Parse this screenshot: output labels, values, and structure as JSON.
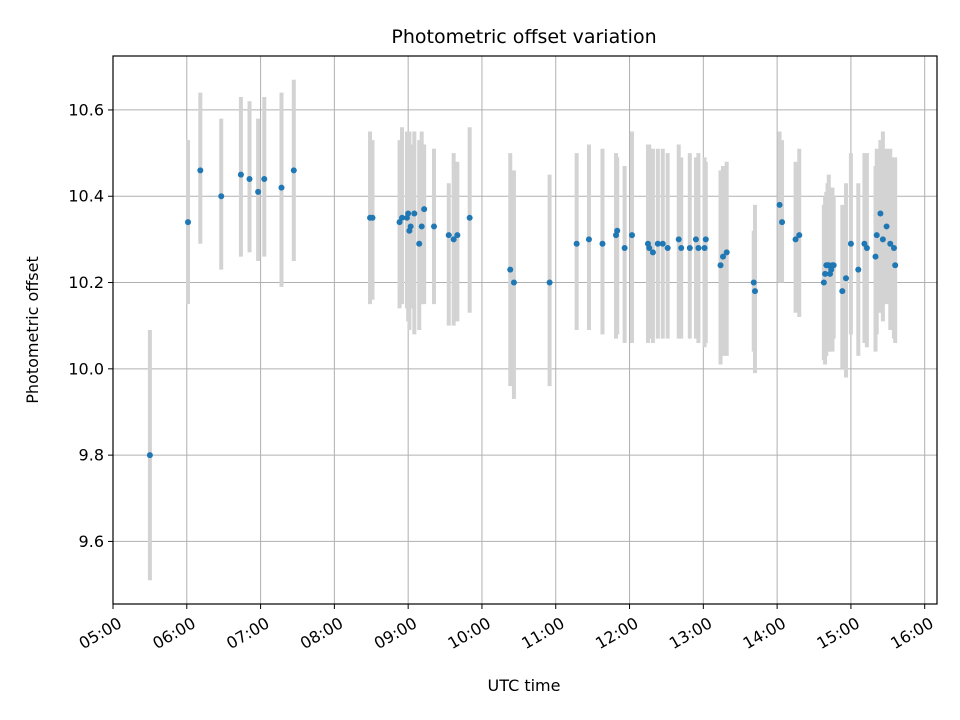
{
  "chart_data": {
    "type": "scatter",
    "title": "Photometric offset variation",
    "xlabel": "UTC time",
    "ylabel": "Photometric offset",
    "x_ticks": [
      "05:00",
      "06:00",
      "07:00",
      "08:00",
      "09:00",
      "10:00",
      "11:00",
      "12:00",
      "13:00",
      "14:00",
      "15:00",
      "16:00"
    ],
    "y_ticks": [
      "9.6",
      "9.8",
      "10.0",
      "10.2",
      "10.4",
      "10.6"
    ],
    "xlim": [
      "05:00",
      "16:10"
    ],
    "ylim": [
      9.455,
      10.725
    ],
    "grid": true,
    "colors": {
      "points": "#1f77b4",
      "errorbars": "#d3d3d3",
      "grid": "#b0b0b0"
    },
    "series": [
      {
        "x": [
          "05:30",
          "06:01",
          "06:11",
          "06:28",
          "06:44",
          "06:51",
          "06:58",
          "07:03",
          "07:17",
          "07:27",
          "08:29",
          "08:31",
          "08:53",
          "08:55",
          "08:59",
          "09:00",
          "09:01",
          "09:02",
          "09:05",
          "09:09",
          "09:11",
          "09:13",
          "09:21",
          "09:33",
          "09:37",
          "09:40",
          "09:50",
          "10:23",
          "10:26",
          "10:55",
          "11:17",
          "11:27",
          "11:38",
          "11:49",
          "11:50",
          "11:56",
          "12:02",
          "12:15",
          "12:16",
          "12:19",
          "12:23",
          "12:27",
          "12:31",
          "12:40",
          "12:42",
          "12:49",
          "12:54",
          "12:56",
          "13:01",
          "13:02",
          "13:14",
          "13:16",
          "13:19",
          "13:41",
          "13:42",
          "14:02",
          "14:04",
          "14:15",
          "14:18",
          "14:38",
          "14:39",
          "14:40",
          "14:41",
          "14:42",
          "14:43",
          "14:44",
          "14:45",
          "14:46",
          "14:53",
          "14:56",
          "15:00",
          "15:06",
          "15:11",
          "15:13",
          "15:20",
          "15:21",
          "15:24",
          "15:26",
          "15:29",
          "15:32",
          "15:35",
          "15:36"
        ],
        "y": [
          9.8,
          10.34,
          10.46,
          10.4,
          10.45,
          10.44,
          10.41,
          10.44,
          10.42,
          10.46,
          10.35,
          10.35,
          10.34,
          10.35,
          10.35,
          10.36,
          10.32,
          10.33,
          10.36,
          10.29,
          10.33,
          10.37,
          10.33,
          10.31,
          10.3,
          10.31,
          10.35,
          10.23,
          10.2,
          10.2,
          10.29,
          10.3,
          10.29,
          10.31,
          10.32,
          10.28,
          10.31,
          10.29,
          10.28,
          10.27,
          10.29,
          10.29,
          10.28,
          10.3,
          10.28,
          10.28,
          10.3,
          10.28,
          10.28,
          10.3,
          10.24,
          10.26,
          10.27,
          10.2,
          10.18,
          10.38,
          10.34,
          10.3,
          10.31,
          10.2,
          10.22,
          10.24,
          10.24,
          10.24,
          10.22,
          10.23,
          10.24,
          10.24,
          10.18,
          10.21,
          10.29,
          10.23,
          10.29,
          10.28,
          10.26,
          10.31,
          10.36,
          10.3,
          10.33,
          10.29,
          10.28,
          10.24
        ],
        "yerr_low": [
          9.51,
          10.15,
          10.29,
          10.23,
          10.26,
          10.27,
          10.25,
          10.26,
          10.19,
          10.25,
          10.15,
          10.16,
          10.14,
          10.15,
          10.14,
          10.11,
          10.09,
          10.14,
          10.08,
          10.09,
          10.15,
          10.15,
          10.15,
          10.1,
          10.1,
          10.11,
          10.13,
          9.96,
          9.93,
          9.96,
          10.09,
          10.09,
          10.08,
          10.07,
          10.08,
          10.06,
          10.06,
          10.06,
          10.07,
          10.06,
          10.07,
          10.07,
          10.07,
          10.07,
          10.07,
          10.07,
          10.07,
          10.06,
          10.05,
          10.06,
          10.01,
          10.03,
          10.03,
          10.04,
          9.99,
          10.2,
          10.2,
          10.13,
          10.12,
          10.02,
          10.01,
          10.03,
          10.04,
          10.05,
          10.04,
          10.06,
          10.04,
          10.07,
          10.0,
          9.98,
          10.08,
          10.03,
          10.06,
          10.05,
          10.04,
          10.08,
          10.13,
          10.11,
          10.15,
          10.09,
          10.07,
          10.06
        ],
        "yerr_high": [
          10.09,
          10.53,
          10.64,
          10.58,
          10.63,
          10.62,
          10.58,
          10.63,
          10.64,
          10.67,
          10.55,
          10.53,
          10.53,
          10.56,
          10.55,
          10.54,
          10.55,
          10.52,
          10.55,
          10.53,
          10.55,
          10.52,
          10.51,
          10.43,
          10.5,
          10.48,
          10.56,
          10.5,
          10.46,
          10.45,
          10.5,
          10.52,
          10.51,
          10.5,
          10.49,
          10.47,
          10.55,
          10.52,
          10.52,
          10.51,
          10.51,
          10.51,
          10.5,
          10.52,
          10.49,
          10.5,
          10.49,
          10.5,
          10.49,
          10.48,
          10.46,
          10.47,
          10.48,
          10.32,
          10.38,
          10.55,
          10.53,
          10.48,
          10.51,
          10.38,
          10.4,
          10.41,
          10.43,
          10.45,
          10.42,
          10.41,
          10.42,
          10.4,
          10.38,
          10.43,
          10.5,
          10.43,
          10.5,
          10.5,
          10.47,
          10.51,
          10.53,
          10.55,
          10.51,
          10.51,
          10.49,
          10.49
        ]
      }
    ]
  }
}
